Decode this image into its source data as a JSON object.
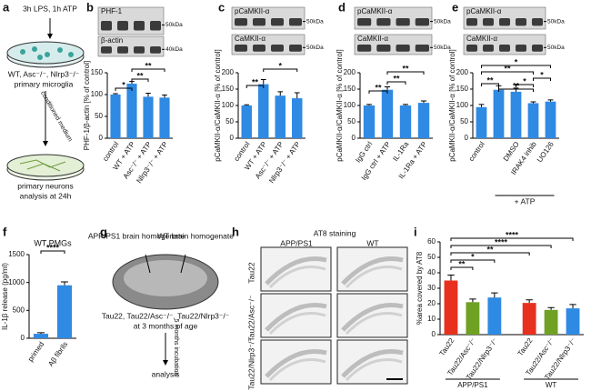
{
  "panel_letters": [
    "a",
    "b",
    "c",
    "d",
    "e",
    "f",
    "g",
    "h",
    "i"
  ],
  "scheme_a": {
    "treatment": "3h LPS, 1h ATP",
    "genotypes": "WT, Asc⁻/⁻, Nlrp3⁻/⁻",
    "cells": "primary microglia",
    "transfer": "conditioned medium",
    "target": "primary neurons",
    "readout": "analysis at 24h"
  },
  "scheme_g": {
    "source_1": "APP/PS1 brain homogenate",
    "source_2": "WT brain homogenate",
    "mice": "Tau22, Tau22/Asc⁻/⁻, Tau22/Nlrp3⁻/⁻",
    "age": "at 3 months of age",
    "incubation": "5 months incubation",
    "readout": "analysis"
  },
  "images_h": {
    "title": "AT8 staining",
    "columns": [
      "APP/PS1",
      "WT"
    ],
    "rows": [
      "Tau22",
      "Tau22/Asc⁻/⁻",
      "Tau22/Nlrp3⁻/⁻"
    ]
  },
  "chart_data": [
    {
      "type": "bar",
      "ylabel": "PHF-1/β-actin [% of control]",
      "blot_labels": [
        "PHF-1",
        "β-actin"
      ],
      "blot_markers": [
        "50kDa",
        "40kDa"
      ],
      "categories": [
        "control",
        "WT + ATP",
        "Asc⁻/⁻ + ATP",
        "Nlrp3⁻/⁻ + ATP"
      ],
      "values": [
        100,
        125,
        95,
        93
      ],
      "errors": [
        2,
        5,
        8,
        6
      ],
      "color": "#2f8ae3",
      "ylim": [
        0,
        150
      ],
      "yticks": [
        0,
        50,
        100,
        150
      ],
      "annotations": [
        "*",
        "**",
        "**"
      ]
    },
    {
      "type": "bar",
      "ylabel": "pCaMKII-α/CaMKII-α [% of control]",
      "blot_labels": [
        "pCaMKII-α",
        "CaMKII-α"
      ],
      "blot_markers": [
        "50kDa",
        "50kDa"
      ],
      "categories": [
        "control",
        "WT + ATP",
        "Asc⁻/⁻ + ATP",
        "Nlrp3⁻/⁻ + ATP"
      ],
      "values": [
        100,
        165,
        130,
        122
      ],
      "errors": [
        2,
        14,
        12,
        17
      ],
      "color": "#2f8ae3",
      "ylim": [
        0,
        200
      ],
      "yticks": [
        0,
        50,
        100,
        150,
        200
      ],
      "annotations": [
        "**",
        "*"
      ]
    },
    {
      "type": "bar",
      "ylabel": "pCaMKII-α/CaMKII-α [% of control]",
      "blot_labels": [
        "pCaMKII-α",
        "CaMKII-α"
      ],
      "blot_markers": [
        "50kDa",
        "50kDa"
      ],
      "categories": [
        "IgG ctrl",
        "IgG ctrl + ATP",
        "IL-1Ra",
        "IL-1Ra + ATP"
      ],
      "values": [
        100,
        148,
        100,
        108
      ],
      "errors": [
        3,
        9,
        3,
        6
      ],
      "color": "#2f8ae3",
      "ylim": [
        0,
        200
      ],
      "yticks": [
        0,
        50,
        100,
        150,
        200
      ],
      "annotations": [
        "**",
        "**",
        "**"
      ]
    },
    {
      "type": "bar",
      "ylabel": "pCaMKII-α/CaMKII-α [% of control]",
      "blot_labels": [
        "pCaMKII-α",
        "CaMKII-α"
      ],
      "blot_markers": [
        "50kDa",
        "50kDa"
      ],
      "categories": [
        "control",
        null,
        "DMSO",
        "IRAK4 inhib",
        "UO126"
      ],
      "values": [
        95,
        148,
        142,
        107,
        112
      ],
      "errors": [
        8,
        12,
        11,
        4,
        5
      ],
      "color": "#2f8ae3",
      "ylim": [
        0,
        200
      ],
      "yticks": [
        0,
        50,
        100,
        150,
        200
      ],
      "group_label": "+ ATP",
      "annotations": [
        "*",
        "**",
        "*",
        "**",
        "**",
        "*"
      ]
    },
    {
      "type": "bar",
      "title": "WT PMGs",
      "ylabel": "IL-1β release (pg/ml)",
      "categories": [
        "primed",
        "Aβ fibrils"
      ],
      "values": [
        80,
        950
      ],
      "errors": [
        20,
        60
      ],
      "color": "#2f8ae3",
      "ylim": [
        0,
        1500
      ],
      "yticks": [
        0,
        500,
        1000,
        1500
      ],
      "annotations": [
        "****"
      ]
    },
    {
      "type": "bar",
      "ylabel": "%area covered by AT8",
      "categories": [
        "Tau22",
        "Tau22/Asc⁻/⁻",
        "Tau22/Nlrp3⁻/⁻",
        "Tau22",
        "Tau22/Asc⁻/⁻",
        "Tau22/Nlrp3⁻/⁻"
      ],
      "values": [
        35,
        21,
        24,
        20.5,
        16,
        17
      ],
      "errors": [
        3.5,
        2,
        3,
        2,
        1.5,
        2.5
      ],
      "colors": [
        "#e8301e",
        "#6fa123",
        "#2f8ae3",
        "#e8301e",
        "#6fa123",
        "#2f8ae3"
      ],
      "ylim": [
        0,
        60
      ],
      "yticks": [
        0,
        10,
        20,
        30,
        40,
        50,
        60
      ],
      "groups": [
        "APP/PS1",
        "WT"
      ],
      "annotations": [
        "****",
        "****",
        "**",
        "*",
        "**"
      ]
    }
  ]
}
